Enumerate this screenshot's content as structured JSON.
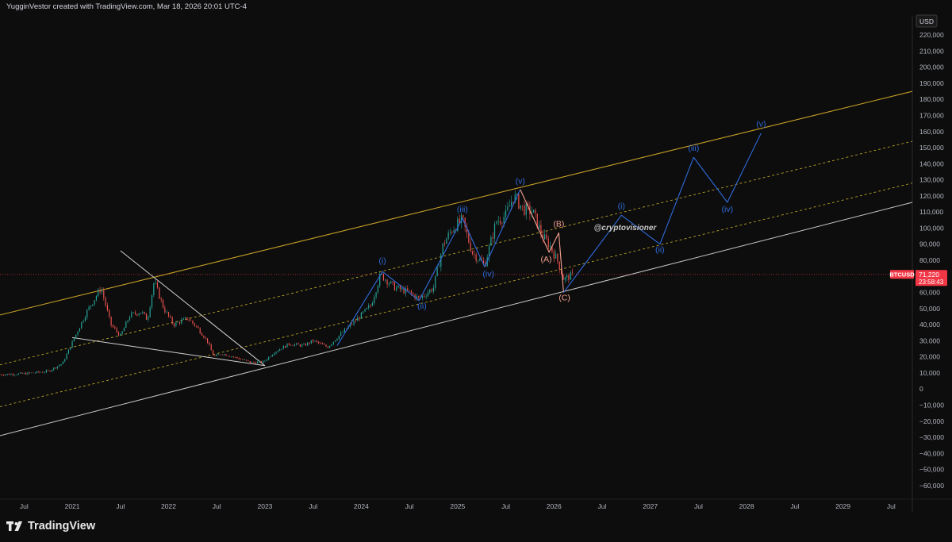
{
  "header": {
    "text": "YugginVestor created with TradingView.com, Mar 18, 2026 20:01 UTC-4"
  },
  "currency_button": {
    "label": "USD"
  },
  "watermark": "@cryptovisioner",
  "footer": {
    "brand": "TradingView"
  },
  "colors": {
    "background": "#0d0d0d",
    "upper_channel": "#c9a227",
    "mid_channels": "#c9b22a",
    "lower_channel": "#c8c8c8",
    "projection": "#2f6bdc",
    "corrective": "#f4a08e",
    "price_tag": "#f23645",
    "candle_up": "#26a69a",
    "candle_down": "#ef5350"
  },
  "chart_data": {
    "type": "line",
    "symbol": "BTCUSD",
    "last_price": "71,220",
    "countdown": "23:58:43",
    "last_price_value": 71220,
    "ylim": [
      -65000,
      225000
    ],
    "xlim": [
      2020.25,
      2029.72
    ],
    "y_ticks": [
      {
        "v": 220000,
        "label": "220,000"
      },
      {
        "v": 210000,
        "label": "210,000"
      },
      {
        "v": 200000,
        "label": "200,000"
      },
      {
        "v": 190000,
        "label": "190,000"
      },
      {
        "v": 180000,
        "label": "180,000"
      },
      {
        "v": 170000,
        "label": "170,000"
      },
      {
        "v": 160000,
        "label": "160,000"
      },
      {
        "v": 150000,
        "label": "150,000"
      },
      {
        "v": 140000,
        "label": "140,000"
      },
      {
        "v": 130000,
        "label": "130,000"
      },
      {
        "v": 120000,
        "label": "120,000"
      },
      {
        "v": 110000,
        "label": "110,000"
      },
      {
        "v": 100000,
        "label": "100,000"
      },
      {
        "v": 90000,
        "label": "90,000"
      },
      {
        "v": 80000,
        "label": "80,000"
      },
      {
        "v": 70000,
        "label": "70,000"
      },
      {
        "v": 60000,
        "label": "60,000"
      },
      {
        "v": 50000,
        "label": "50,000"
      },
      {
        "v": 40000,
        "label": "40,000"
      },
      {
        "v": 30000,
        "label": "30,000"
      },
      {
        "v": 20000,
        "label": "20,000"
      },
      {
        "v": 10000,
        "label": "10,000"
      },
      {
        "v": 0,
        "label": "0"
      },
      {
        "v": -10000,
        "label": "−10,000"
      },
      {
        "v": -20000,
        "label": "−20,000"
      },
      {
        "v": -30000,
        "label": "−30,000"
      },
      {
        "v": -40000,
        "label": "−40,000"
      },
      {
        "v": -50000,
        "label": "−50,000"
      },
      {
        "v": -60000,
        "label": "−60,000"
      }
    ],
    "x_ticks": [
      {
        "t": 2020.5,
        "label": "Jul"
      },
      {
        "t": 2021.0,
        "label": "2021"
      },
      {
        "t": 2021.5,
        "label": "Jul"
      },
      {
        "t": 2022.0,
        "label": "2022"
      },
      {
        "t": 2022.5,
        "label": "Jul"
      },
      {
        "t": 2023.0,
        "label": "2023"
      },
      {
        "t": 2023.5,
        "label": "Jul"
      },
      {
        "t": 2024.0,
        "label": "2024"
      },
      {
        "t": 2024.5,
        "label": "Jul"
      },
      {
        "t": 2025.0,
        "label": "2025"
      },
      {
        "t": 2025.5,
        "label": "Jul"
      },
      {
        "t": 2026.0,
        "label": "2026"
      },
      {
        "t": 2026.5,
        "label": "Jul"
      },
      {
        "t": 2027.0,
        "label": "2027"
      },
      {
        "t": 2027.5,
        "label": "Jul"
      },
      {
        "t": 2028.0,
        "label": "2028"
      },
      {
        "t": 2028.5,
        "label": "Jul"
      },
      {
        "t": 2029.0,
        "label": "2029"
      },
      {
        "t": 2029.5,
        "label": "Jul"
      }
    ],
    "price_path": [
      [
        2020.25,
        9000
      ],
      [
        2020.5,
        9500
      ],
      [
        2020.75,
        11000
      ],
      [
        2020.9,
        16000
      ],
      [
        2021.0,
        29000
      ],
      [
        2021.15,
        48000
      ],
      [
        2021.25,
        58000
      ],
      [
        2021.3,
        63000
      ],
      [
        2021.4,
        40000
      ],
      [
        2021.5,
        33000
      ],
      [
        2021.6,
        46000
      ],
      [
        2021.72,
        48000
      ],
      [
        2021.78,
        43000
      ],
      [
        2021.85,
        67000
      ],
      [
        2021.95,
        50000
      ],
      [
        2022.05,
        40000
      ],
      [
        2022.2,
        44000
      ],
      [
        2022.3,
        38000
      ],
      [
        2022.4,
        30000
      ],
      [
        2022.47,
        20000
      ],
      [
        2022.55,
        22000
      ],
      [
        2022.7,
        19500
      ],
      [
        2022.85,
        16500
      ],
      [
        2022.98,
        16700
      ],
      [
        2023.1,
        23000
      ],
      [
        2023.25,
        28000
      ],
      [
        2023.4,
        27000
      ],
      [
        2023.5,
        30000
      ],
      [
        2023.65,
        26000
      ],
      [
        2023.8,
        35000
      ],
      [
        2023.95,
        43000
      ],
      [
        2024.1,
        52000
      ],
      [
        2024.2,
        71000
      ],
      [
        2024.35,
        63000
      ],
      [
        2024.5,
        60000
      ],
      [
        2024.6,
        56000
      ],
      [
        2024.75,
        63000
      ],
      [
        2024.85,
        90000
      ],
      [
        2024.95,
        100000
      ],
      [
        2025.05,
        105000
      ],
      [
        2025.15,
        85000
      ],
      [
        2025.28,
        77000
      ],
      [
        2025.4,
        104000
      ],
      [
        2025.5,
        108000
      ],
      [
        2025.58,
        120000
      ],
      [
        2025.68,
        112000
      ],
      [
        2025.78,
        110000
      ],
      [
        2025.88,
        95000
      ],
      [
        2025.95,
        90000
      ],
      [
        2026.05,
        78000
      ],
      [
        2026.1,
        68000
      ],
      [
        2026.16,
        70000
      ],
      [
        2026.21,
        71220
      ]
    ],
    "channels": [
      {
        "name": "upper",
        "style": "solid",
        "points": [
          [
            2020.25,
            46000
          ],
          [
            2029.72,
            185000
          ]
        ]
      },
      {
        "name": "mid-upper",
        "style": "dashed",
        "points": [
          [
            2020.25,
            15000
          ],
          [
            2029.72,
            154000
          ]
        ]
      },
      {
        "name": "mid-lower",
        "style": "dashed",
        "points": [
          [
            2020.25,
            -11000
          ],
          [
            2029.72,
            128000
          ]
        ]
      },
      {
        "name": "lower",
        "style": "solid",
        "points": [
          [
            2020.25,
            -29000
          ],
          [
            2029.72,
            116000
          ]
        ]
      }
    ],
    "trend_lines": [
      {
        "name": "descending",
        "points": [
          [
            2021.5,
            86000
          ],
          [
            2023.0,
            14500
          ]
        ]
      },
      {
        "name": "ascending",
        "points": [
          [
            2021.0,
            32000
          ],
          [
            2023.0,
            14500
          ]
        ]
      }
    ],
    "impulse_wave": [
      [
        2023.75,
        27000
      ],
      [
        2024.22,
        73000
      ],
      [
        2024.6,
        55000
      ],
      [
        2025.05,
        106000
      ],
      [
        2025.28,
        76000
      ],
      [
        2025.65,
        124000
      ]
    ],
    "corrective_wave": [
      [
        2025.65,
        124000
      ],
      [
        2025.95,
        85000
      ],
      [
        2026.05,
        97000
      ],
      [
        2026.1,
        60000
      ]
    ],
    "projection_wave": [
      [
        2026.1,
        60000
      ],
      [
        2026.7,
        108000
      ],
      [
        2027.1,
        90000
      ],
      [
        2027.45,
        144000
      ],
      [
        2027.8,
        116000
      ],
      [
        2028.15,
        159000
      ]
    ],
    "wave_labels": [
      {
        "text": "(i)",
        "t": 2024.22,
        "v": 78000,
        "color": "#2f6bdc"
      },
      {
        "text": "(ii)",
        "t": 2024.63,
        "v": 50000,
        "color": "#2f6bdc"
      },
      {
        "text": "(iii)",
        "t": 2025.05,
        "v": 110000,
        "color": "#2f6bdc"
      },
      {
        "text": "(iv)",
        "t": 2025.32,
        "v": 70000,
        "color": "#2f6bdc"
      },
      {
        "text": "(v)",
        "t": 2025.65,
        "v": 127500,
        "color": "#2f6bdc"
      },
      {
        "text": "(A)",
        "t": 2025.92,
        "v": 79000,
        "color": "#f4a08e"
      },
      {
        "text": "(B)",
        "t": 2026.05,
        "v": 101000,
        "color": "#f4a08e"
      },
      {
        "text": "(C)",
        "t": 2026.11,
        "v": 55000,
        "color": "#f4a08e"
      },
      {
        "text": "(i)",
        "t": 2026.7,
        "v": 112000,
        "color": "#2f6bdc"
      },
      {
        "text": "(ii)",
        "t": 2027.1,
        "v": 85000,
        "color": "#2f6bdc"
      },
      {
        "text": "(iii)",
        "t": 2027.45,
        "v": 148000,
        "color": "#2f6bdc"
      },
      {
        "text": "(iv)",
        "t": 2027.8,
        "v": 110000,
        "color": "#2f6bdc"
      },
      {
        "text": "(v)",
        "t": 2028.15,
        "v": 163000,
        "color": "#2f6bdc"
      }
    ]
  }
}
